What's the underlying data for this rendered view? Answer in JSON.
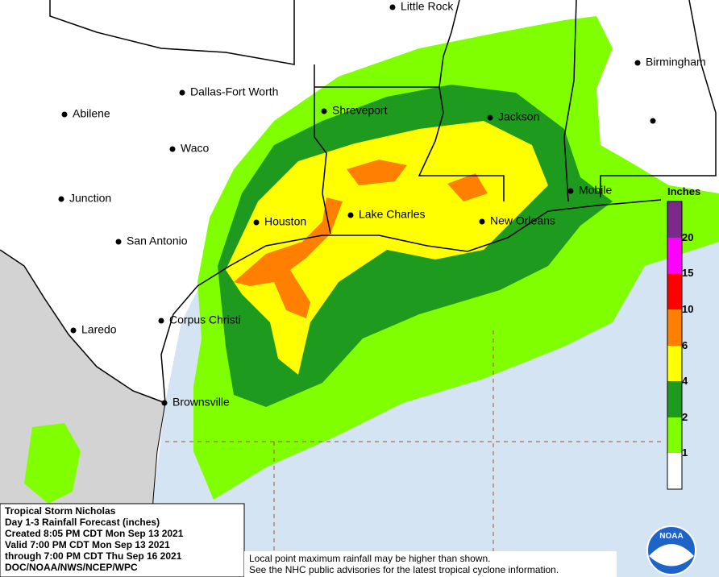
{
  "map": {
    "cities": [
      "Little Rock",
      "Birmingham",
      "Dallas-Fort Worth",
      "Shreveport",
      "Jackson",
      "Abilene",
      "Waco",
      "Mobile",
      "Junction",
      "Houston",
      "Lake Charles",
      "New Orleans",
      "San Antonio",
      "Corpus Christi",
      "Laredo",
      "Brownsville"
    ],
    "legend": {
      "title": "Inches",
      "labels": [
        20,
        15,
        10,
        6,
        4,
        2,
        1
      ]
    }
  },
  "info": {
    "lines": [
      "Tropical Storm Nicholas",
      "Day 1-3 Rainfall Forecast (inches)",
      "Created 8:05 PM CDT Mon Sep 13 2021",
      "Valid 7:00 PM CDT Mon Sep 13 2021",
      "through 7:00 PM CDT Thu Sep 16 2021",
      "DOC/NOAA/NWS/NCEP/WPC"
    ]
  },
  "disclaimer": {
    "lines": [
      "Local point maximum rainfall may be higher than shown.",
      "See the NHC public advisories for the latest tropical cyclone information."
    ]
  },
  "logo": "NOAA"
}
